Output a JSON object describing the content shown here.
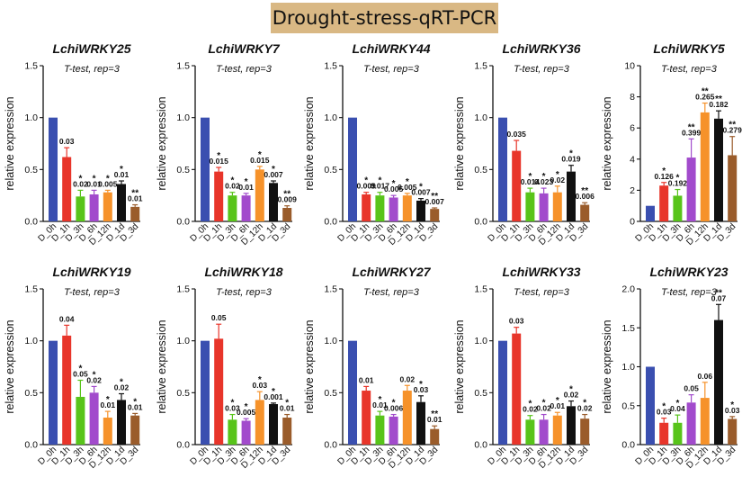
{
  "title": "Drought-stress-qRT-PCR",
  "colors": [
    "#3a4fb0",
    "#e8352a",
    "#58c41a",
    "#a24bcc",
    "#f6922a",
    "#111111",
    "#9a5c2b"
  ],
  "chart_data": [
    {
      "type": "bar",
      "title": "LchiWRKY25",
      "subtitle": "T-test, rep=3",
      "ylabel": "relative expression",
      "categories": [
        "D_0h",
        "D_1h",
        "D_3h",
        "D_6h",
        "D_12h",
        "D_1d",
        "D_3d"
      ],
      "values": [
        1.0,
        0.62,
        0.24,
        0.26,
        0.28,
        0.36,
        0.14
      ],
      "errors": [
        0,
        0.09,
        0.06,
        0.04,
        0.02,
        0.03,
        0.02
      ],
      "pvalues": [
        "",
        "0.03",
        "0.02",
        "0.01",
        "0.005",
        "0.01",
        "0.01"
      ],
      "stars": [
        "",
        "",
        "*",
        "*",
        "*",
        "*",
        "**"
      ],
      "ylim": [
        0,
        1.5
      ],
      "yticks": [
        "0.0",
        "0.5",
        "1.0",
        "1.5"
      ]
    },
    {
      "type": "bar",
      "title": "LchiWRKY7",
      "subtitle": "T-test, rep=3",
      "ylabel": "relative expression",
      "categories": [
        "D_0h",
        "D_1h",
        "D_3h",
        "D_6h",
        "D_12h",
        "D_1d",
        "D_3d"
      ],
      "values": [
        1.0,
        0.48,
        0.25,
        0.25,
        0.5,
        0.37,
        0.13
      ],
      "errors": [
        0,
        0.04,
        0.03,
        0.02,
        0.03,
        0.02,
        0.02
      ],
      "pvalues": [
        "",
        "0.015",
        "0.02",
        "0.01",
        "0.015",
        "0.007",
        "0.009"
      ],
      "stars": [
        "",
        "*",
        "*",
        "*",
        "*",
        "*",
        "**"
      ],
      "ylim": [
        0,
        1.5
      ],
      "yticks": [
        "0.0",
        "0.5",
        "1.0",
        "1.5"
      ]
    },
    {
      "type": "bar",
      "title": "LchiWRKY44",
      "subtitle": "T-test, rep=3",
      "ylabel": "relative expression",
      "categories": [
        "D_0h",
        "D_1h",
        "D_3h",
        "D_6h",
        "D_12h",
        "D_1d",
        "D_3d"
      ],
      "values": [
        1.0,
        0.26,
        0.25,
        0.23,
        0.25,
        0.2,
        0.12
      ],
      "errors": [
        0,
        0.02,
        0.03,
        0.02,
        0.02,
        0.02,
        0.01
      ],
      "pvalues": [
        "",
        "0.009",
        "0.017",
        "0.005",
        "0.005",
        "0.007",
        "0.007"
      ],
      "stars": [
        "",
        "*",
        "*",
        "*",
        "*",
        "*",
        "**"
      ],
      "ylim": [
        0,
        1.5
      ],
      "yticks": [
        "0.0",
        "0.5",
        "1.0",
        "1.5"
      ]
    },
    {
      "type": "bar",
      "title": "LchiWRKY36",
      "subtitle": "T-test, rep=3",
      "ylabel": "relative expression",
      "categories": [
        "D_0h",
        "D_1h",
        "D_3h",
        "D_6h",
        "D_12h",
        "D_1d",
        "D_3d"
      ],
      "values": [
        1.0,
        0.68,
        0.28,
        0.27,
        0.28,
        0.48,
        0.16
      ],
      "errors": [
        0,
        0.1,
        0.04,
        0.05,
        0.06,
        0.06,
        0.02
      ],
      "pvalues": [
        "",
        "0.035",
        "0.014",
        "0.023",
        "0.02",
        "0.019",
        "0.006"
      ],
      "stars": [
        "",
        "",
        "*",
        "*",
        "*",
        "*",
        "**"
      ],
      "ylim": [
        0,
        1.5
      ],
      "yticks": [
        "0.0",
        "0.5",
        "1.0",
        "1.5"
      ]
    },
    {
      "type": "bar",
      "title": "LchiWRKY5",
      "subtitle": "T-test, rep=3",
      "ylabel": "relative expression",
      "categories": [
        "D_0h",
        "D_1h",
        "D_3h",
        "D_6h",
        "D_12h",
        "D_1d",
        "D_3d"
      ],
      "values": [
        1.0,
        2.3,
        1.65,
        4.1,
        7.0,
        6.6,
        4.25
      ],
      "errors": [
        0,
        0.2,
        0.4,
        1.2,
        0.6,
        0.5,
        1.2
      ],
      "pvalues": [
        "",
        "0.126",
        "0.192",
        "0.399",
        "0.265",
        "0.182",
        "0.279"
      ],
      "stars": [
        "",
        "*",
        "*",
        "**",
        "**",
        "**",
        "**"
      ],
      "ylim": [
        0,
        10
      ],
      "yticks": [
        "0",
        "2",
        "4",
        "6",
        "8",
        "10"
      ]
    },
    {
      "type": "bar",
      "title": "LchiWRKY19",
      "subtitle": "T-test, rep=3",
      "ylabel": "relative expression",
      "categories": [
        "D_0h",
        "D_1h",
        "D_3h",
        "D_6h",
        "D_12h",
        "D_1d",
        "D_3d"
      ],
      "values": [
        1.0,
        1.05,
        0.46,
        0.5,
        0.26,
        0.43,
        0.28
      ],
      "errors": [
        0,
        0.1,
        0.16,
        0.06,
        0.06,
        0.06,
        0.02
      ],
      "pvalues": [
        "",
        "0.04",
        "0.05",
        "0.02",
        "0.01",
        "0.02",
        "0.01"
      ],
      "stars": [
        "",
        "",
        "*",
        "*",
        "*",
        "*",
        "*"
      ],
      "ylim": [
        0,
        1.5
      ],
      "yticks": [
        "0.0",
        "0.5",
        "1.0",
        "1.5"
      ]
    },
    {
      "type": "bar",
      "title": "LchiWRKY18",
      "subtitle": "T-test, rep=3",
      "ylabel": "relative expression",
      "categories": [
        "D_0h",
        "D_1h",
        "D_3h",
        "D_6h",
        "D_12h",
        "D_1d",
        "D_3d"
      ],
      "values": [
        1.0,
        1.02,
        0.24,
        0.23,
        0.43,
        0.39,
        0.26
      ],
      "errors": [
        0,
        0.14,
        0.05,
        0.02,
        0.08,
        0.01,
        0.03
      ],
      "pvalues": [
        "",
        "0.05",
        "0.03",
        "0.005",
        "0.03",
        "0.001",
        "0.01"
      ],
      "stars": [
        "",
        "",
        "*",
        "*",
        "*",
        "*",
        "*"
      ],
      "ylim": [
        0,
        1.5
      ],
      "yticks": [
        "0.0",
        "0.5",
        "1.0",
        "1.5"
      ]
    },
    {
      "type": "bar",
      "title": "LchiWRKY27",
      "subtitle": "T-test, rep=3",
      "ylabel": "relative expression",
      "categories": [
        "D_0h",
        "D_1h",
        "D_3h",
        "D_6h",
        "D_12h",
        "D_1d",
        "D_3d"
      ],
      "values": [
        1.0,
        0.52,
        0.28,
        0.27,
        0.52,
        0.41,
        0.15
      ],
      "errors": [
        0,
        0.04,
        0.04,
        0.02,
        0.05,
        0.06,
        0.03
      ],
      "pvalues": [
        "",
        "0.01",
        "0.01",
        "0.006",
        "0.02",
        "0.03",
        "0.01"
      ],
      "stars": [
        "",
        "",
        "*",
        "*",
        "",
        "*",
        "**"
      ],
      "ylim": [
        0,
        1.5
      ],
      "yticks": [
        "0.0",
        "0.5",
        "1.0",
        "1.5"
      ]
    },
    {
      "type": "bar",
      "title": "LchiWRKY33",
      "subtitle": "T-test, rep=3",
      "ylabel": "relative expression",
      "categories": [
        "D_0h",
        "D_1h",
        "D_3h",
        "D_6h",
        "D_12h",
        "D_1d",
        "D_3d"
      ],
      "values": [
        1.0,
        1.07,
        0.24,
        0.24,
        0.28,
        0.37,
        0.25
      ],
      "errors": [
        0,
        0.06,
        0.04,
        0.05,
        0.03,
        0.05,
        0.04
      ],
      "pvalues": [
        "",
        "0.03",
        "0.02",
        "0.02",
        "0.01",
        "0.02",
        "0.02"
      ],
      "stars": [
        "",
        "",
        "*",
        "*",
        "*",
        "*",
        "*"
      ],
      "ylim": [
        0,
        1.5
      ],
      "yticks": [
        "0.0",
        "0.5",
        "1.0",
        "1.5"
      ]
    },
    {
      "type": "bar",
      "title": "LchiWRKY23",
      "subtitle": "T-test, rep=3",
      "ylabel": "relative expression",
      "categories": [
        "D_0h",
        "D_1h",
        "D_3h",
        "D_6h",
        "D_12h",
        "D_1d",
        "D_3d"
      ],
      "values": [
        1.0,
        0.28,
        0.28,
        0.54,
        0.6,
        1.6,
        0.33
      ],
      "errors": [
        0,
        0.06,
        0.1,
        0.1,
        0.2,
        0.2,
        0.03
      ],
      "pvalues": [
        "",
        "0.03",
        "0.04",
        "0.05",
        "0.06",
        "0.07",
        "0.03"
      ],
      "stars": [
        "",
        "*",
        "*",
        "",
        "",
        "**",
        "*"
      ],
      "ylim": [
        0,
        2.0
      ],
      "yticks": [
        "0.0",
        "0.5",
        "1.0",
        "1.5",
        "2.0"
      ]
    }
  ]
}
